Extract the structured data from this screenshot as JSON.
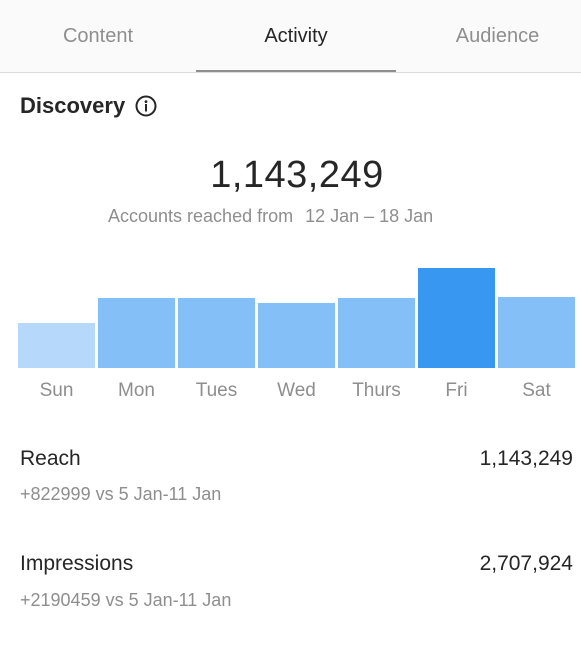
{
  "tabs": [
    {
      "label": "Content",
      "active": false
    },
    {
      "label": "Activity",
      "active": true
    },
    {
      "label": "Audience",
      "active": false
    }
  ],
  "section": {
    "title": "Discovery",
    "icon": "info-icon"
  },
  "summary": {
    "total": "1,143,249",
    "caption": "Accounts reached from",
    "date_range": "12 Jan – 18 Jan"
  },
  "colors": {
    "bar_default": "#85bff8",
    "bar_low": "#b5d8fb",
    "bar_highlight": "#3897f0",
    "axis_label": "#8e8e8e"
  },
  "chart_data": {
    "type": "bar",
    "categories": [
      "Sun",
      "Mon",
      "Tues",
      "Wed",
      "Thurs",
      "Fri",
      "Sat"
    ],
    "values": [
      45,
      70,
      70,
      65,
      70,
      100,
      71
    ],
    "highlight": "Fri",
    "title": "",
    "xlabel": "",
    "ylabel": "",
    "ylim": [
      0,
      100
    ],
    "grid": false
  },
  "stats": [
    {
      "label": "Reach",
      "value": "1,143,249",
      "compare": "+822999 vs 5 Jan-11 Jan"
    },
    {
      "label": "Impressions",
      "value": "2,707,924",
      "compare": "+2190459 vs 5 Jan-11 Jan"
    }
  ]
}
